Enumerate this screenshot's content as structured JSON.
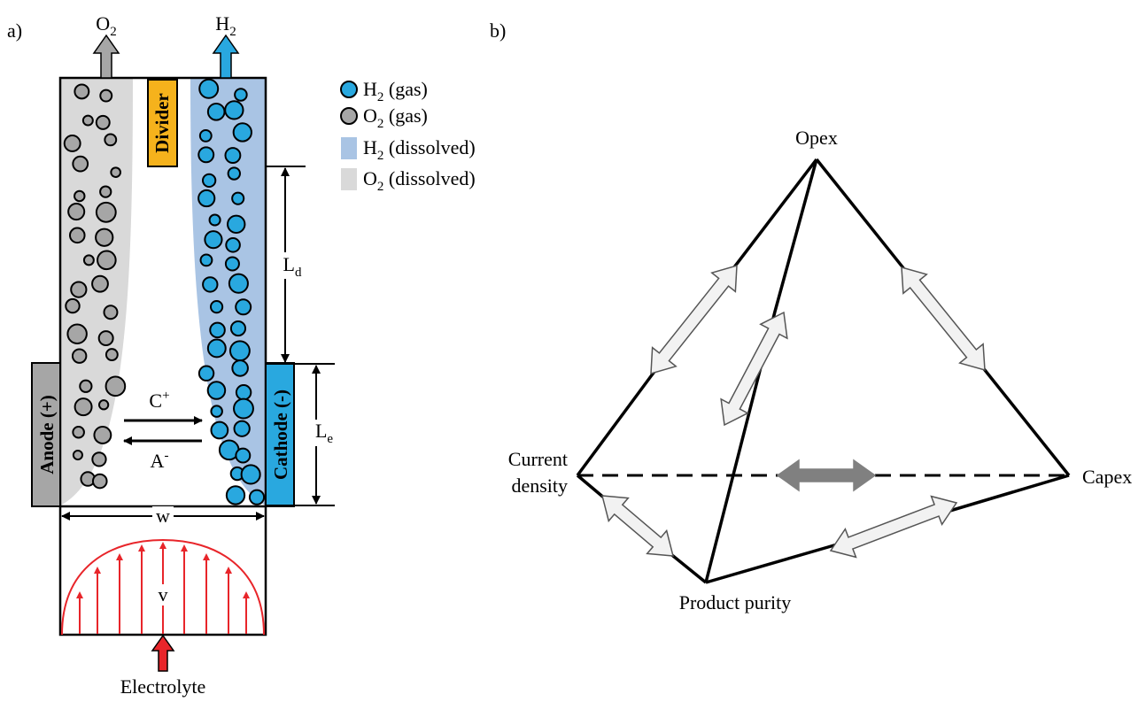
{
  "panel_a": {
    "label": "a)",
    "outlet_o2": {
      "base": "O",
      "sub": "2"
    },
    "outlet_h2": {
      "base": "H",
      "sub": "2"
    },
    "divider": "Divider",
    "legend": [
      {
        "base": "H",
        "sub": "2",
        "rest": " (gas)"
      },
      {
        "base": "O",
        "sub": "2",
        "rest": " (gas)"
      },
      {
        "base": "H",
        "sub": "2",
        "rest": " (dissolved)"
      },
      {
        "base": "O",
        "sub": "2",
        "rest": " (dissolved)"
      }
    ],
    "dimension_ld": {
      "base": "L",
      "sub": "d"
    },
    "dimension_le": {
      "base": "L",
      "sub": "e"
    },
    "cation": {
      "base": "C",
      "sup": "+"
    },
    "anion": {
      "base": "A",
      "sup": "-"
    },
    "anode": "Anode (+)",
    "cathode": "Cathode (-)",
    "width": "w",
    "velocity": "v",
    "inlet": "Electrolyte"
  },
  "panel_b": {
    "label": "b)",
    "vertices": {
      "top": "Opex",
      "left": [
        "Current",
        "density"
      ],
      "right": "Capex",
      "bottom": "Product purity"
    }
  }
}
